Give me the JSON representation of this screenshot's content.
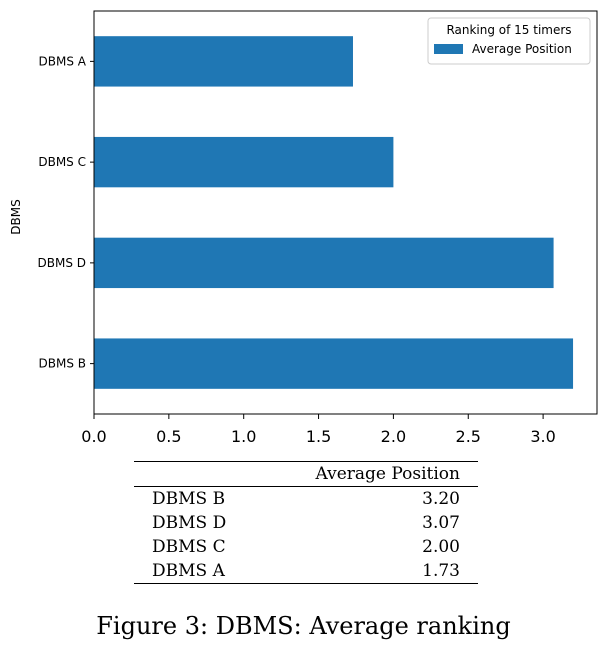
{
  "chart_data": {
    "type": "bar",
    "orientation": "horizontal",
    "categories": [
      "DBMS B",
      "DBMS D",
      "DBMS C",
      "DBMS A"
    ],
    "series": [
      {
        "name": "Average Position",
        "values": [
          3.2,
          3.07,
          2.0,
          1.73
        ],
        "color": "#1f77b4"
      }
    ],
    "xlim": [
      0.0,
      3.36
    ],
    "xticks": [
      "0.0",
      "0.5",
      "1.0",
      "1.5",
      "2.0",
      "2.5",
      "3.0"
    ],
    "xlabel": "",
    "ylabel": "DBMS",
    "legend_title": "Ranking of 15 timers",
    "legend_position": "top-right"
  },
  "table": {
    "header": [
      "",
      "Average Position"
    ],
    "rows": [
      [
        "DBMS B",
        "3.20"
      ],
      [
        "DBMS D",
        "3.07"
      ],
      [
        "DBMS C",
        "2.00"
      ],
      [
        "DBMS A",
        "1.73"
      ]
    ]
  },
  "caption": "Figure 3: DBMS: Average ranking"
}
